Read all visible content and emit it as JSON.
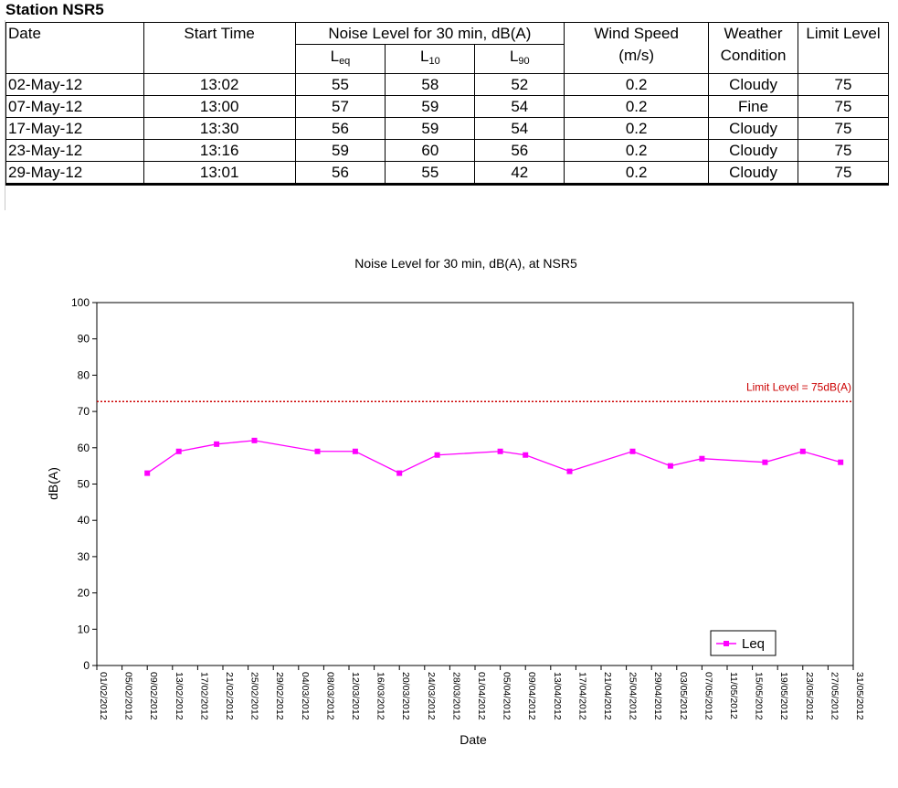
{
  "station_title": "Station NSR5",
  "table": {
    "headers": {
      "date": "Date",
      "start_time": "Start Time",
      "noise_group": "Noise Level for 30 min, dB(A)",
      "leq_main": "L",
      "leq_sub": "eq",
      "l10_main": "L",
      "l10_sub": "10",
      "l90_main": "L",
      "l90_sub": "90",
      "wind_speed": "Wind Speed",
      "wind_unit": "(m/s)",
      "weather": "Weather",
      "weather2": "Condition",
      "limit": "Limit Level"
    },
    "rows": [
      {
        "date": "02-May-12",
        "start": "13:02",
        "leq": "55",
        "l10": "58",
        "l90": "52",
        "wind": "0.2",
        "weather": "Cloudy",
        "limit": "75"
      },
      {
        "date": "07-May-12",
        "start": "13:00",
        "leq": "57",
        "l10": "59",
        "l90": "54",
        "wind": "0.2",
        "weather": "Fine",
        "limit": "75"
      },
      {
        "date": "17-May-12",
        "start": "13:30",
        "leq": "56",
        "l10": "59",
        "l90": "54",
        "wind": "0.2",
        "weather": "Cloudy",
        "limit": "75"
      },
      {
        "date": "23-May-12",
        "start": "13:16",
        "leq": "59",
        "l10": "60",
        "l90": "56",
        "wind": "0.2",
        "weather": "Cloudy",
        "limit": "75"
      },
      {
        "date": "29-May-12",
        "start": "13:01",
        "leq": "56",
        "l10": "55",
        "l90": "42",
        "wind": "0.2",
        "weather": "Cloudy",
        "limit": "75"
      }
    ]
  },
  "chart_data": {
    "type": "line",
    "title": "Noise Level for 30 min, dB(A), at NSR5",
    "xlabel": "Date",
    "ylabel": "dB(A)",
    "ylim": [
      0,
      100
    ],
    "yticks": [
      "0",
      "10",
      "20",
      "30",
      "40",
      "50",
      "60",
      "70",
      "80",
      "90",
      "100"
    ],
    "xlim": [
      "01/02/2012",
      "31/05/2012"
    ],
    "xticks": [
      "01/02/2012",
      "05/02/2012",
      "09/02/2012",
      "13/02/2012",
      "17/02/2012",
      "21/02/2012",
      "25/02/2012",
      "29/02/2012",
      "04/03/2012",
      "08/03/2012",
      "12/03/2012",
      "16/03/2012",
      "20/03/2012",
      "24/03/2012",
      "28/03/2012",
      "01/04/2012",
      "05/04/2012",
      "09/04/2012",
      "13/04/2012",
      "17/04/2012",
      "21/04/2012",
      "25/04/2012",
      "29/04/2012",
      "03/05/2012",
      "07/05/2012",
      "11/05/2012",
      "15/05/2012",
      "19/05/2012",
      "23/05/2012",
      "27/05/2012",
      "31/05/2012"
    ],
    "grid": false,
    "legend_position": "bottom-right",
    "series": [
      {
        "name": "Leq",
        "color": "#ff00ff",
        "x": [
          "09/02/2012",
          "14/02/2012",
          "20/02/2012",
          "26/02/2012",
          "07/03/2012",
          "13/03/2012",
          "20/03/2012",
          "26/03/2012",
          "05/04/2012",
          "09/04/2012",
          "16/04/2012",
          "26/04/2012",
          "02/05/2012",
          "07/05/2012",
          "17/05/2012",
          "23/05/2012",
          "29/05/2012"
        ],
        "y": [
          53,
          59,
          61,
          62,
          59,
          59,
          53,
          58,
          59,
          58,
          53.5,
          59,
          55,
          57,
          56,
          59,
          56
        ]
      }
    ],
    "limit_line": {
      "value": 75,
      "label": "Limit Level = 75dB(A)",
      "color": "#cc0000"
    }
  }
}
